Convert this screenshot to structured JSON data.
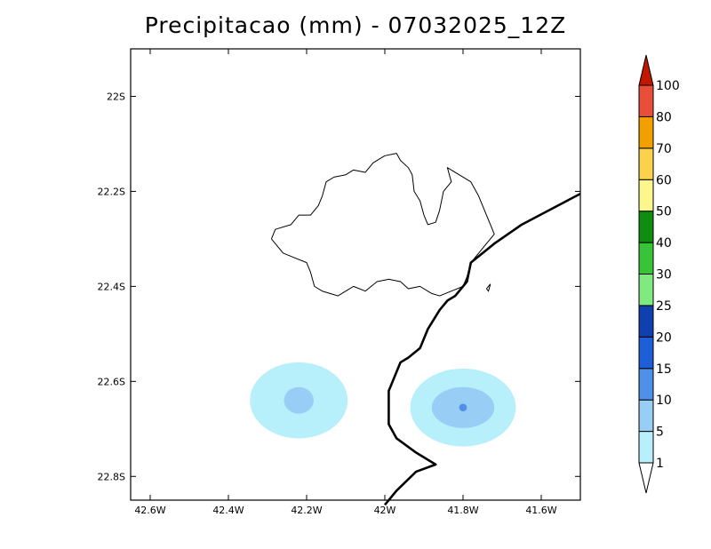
{
  "title": "Precipitacao (mm) - 07032025_12Z",
  "map": {
    "lon_range": [
      -42.65,
      -41.5
    ],
    "lat_range": [
      -22.85,
      -21.9
    ],
    "x_ticks": [
      {
        "lon": -42.6,
        "label": "42.6W"
      },
      {
        "lon": -42.4,
        "label": "42.4W"
      },
      {
        "lon": -42.2,
        "label": "42.2W"
      },
      {
        "lon": -42.0,
        "label": "42W"
      },
      {
        "lon": -41.8,
        "label": "41.8W"
      },
      {
        "lon": -41.6,
        "label": "41.6W"
      }
    ],
    "y_ticks": [
      {
        "lat": -22.0,
        "label": "22S"
      },
      {
        "lat": -22.2,
        "label": "22.2S"
      },
      {
        "lat": -22.4,
        "label": "22.4S"
      },
      {
        "lat": -22.6,
        "label": "22.6S"
      },
      {
        "lat": -22.8,
        "label": "22.8S"
      }
    ],
    "precip_cells": [
      {
        "lon": -42.22,
        "lat": -22.64,
        "levels": [
          {
            "value": 1,
            "rlon": 0.125,
            "rlat": 0.08,
            "color": "#b7f0fa"
          },
          {
            "value": 5,
            "rlon": 0.038,
            "rlat": 0.028,
            "color": "#98cdf6"
          }
        ]
      },
      {
        "lon": -41.8,
        "lat": -22.655,
        "levels": [
          {
            "value": 1,
            "rlon": 0.135,
            "rlat": 0.082,
            "color": "#b7f0fa"
          },
          {
            "value": 5,
            "rlon": 0.08,
            "rlat": 0.043,
            "color": "#98cdf6"
          },
          {
            "value": 10,
            "rlon": 0.01,
            "rlat": 0.008,
            "color": "#4f90e8"
          }
        ]
      }
    ],
    "coastline": [
      [
        -41.5,
        -22.205
      ],
      [
        -41.65,
        -22.27
      ],
      [
        -41.72,
        -22.31
      ],
      [
        -41.78,
        -22.35
      ],
      [
        -41.79,
        -22.39
      ],
      [
        -41.82,
        -22.42
      ],
      [
        -41.84,
        -22.43
      ],
      [
        -41.86,
        -22.45
      ],
      [
        -41.89,
        -22.49
      ],
      [
        -41.91,
        -22.53
      ],
      [
        -41.94,
        -22.55
      ],
      [
        -41.96,
        -22.56
      ],
      [
        -41.98,
        -22.6
      ],
      [
        -41.99,
        -22.62
      ],
      [
        -41.99,
        -22.69
      ],
      [
        -41.97,
        -22.72
      ],
      [
        -41.92,
        -22.75
      ],
      [
        -41.87,
        -22.775
      ],
      [
        -41.92,
        -22.79
      ],
      [
        -41.97,
        -22.83
      ],
      [
        -42.0,
        -22.86
      ]
    ],
    "municipality": [
      [
        -42.29,
        -22.3
      ],
      [
        -42.28,
        -22.28
      ],
      [
        -42.24,
        -22.27
      ],
      [
        -42.22,
        -22.25
      ],
      [
        -42.19,
        -22.25
      ],
      [
        -42.17,
        -22.23
      ],
      [
        -42.16,
        -22.21
      ],
      [
        -42.15,
        -22.18
      ],
      [
        -42.13,
        -22.17
      ],
      [
        -42.1,
        -22.165
      ],
      [
        -42.08,
        -22.155
      ],
      [
        -42.05,
        -22.16
      ],
      [
        -42.03,
        -22.14
      ],
      [
        -42.01,
        -22.13
      ],
      [
        -42.0,
        -22.125
      ],
      [
        -41.97,
        -22.12
      ],
      [
        -41.96,
        -22.135
      ],
      [
        -41.94,
        -22.15
      ],
      [
        -41.93,
        -22.165
      ],
      [
        -41.925,
        -22.2
      ],
      [
        -41.91,
        -22.22
      ],
      [
        -41.9,
        -22.25
      ],
      [
        -41.89,
        -22.27
      ],
      [
        -41.87,
        -22.265
      ],
      [
        -41.86,
        -22.24
      ],
      [
        -41.85,
        -22.2
      ],
      [
        -41.83,
        -22.18
      ],
      [
        -41.84,
        -22.15
      ],
      [
        -41.81,
        -22.165
      ],
      [
        -41.78,
        -22.18
      ],
      [
        -41.76,
        -22.21
      ],
      [
        -41.74,
        -22.25
      ],
      [
        -41.72,
        -22.29
      ],
      [
        -41.74,
        -22.31
      ],
      [
        -41.76,
        -22.33
      ],
      [
        -41.78,
        -22.35
      ],
      [
        -41.79,
        -22.38
      ],
      [
        -41.8,
        -22.4
      ],
      [
        -41.83,
        -22.41
      ],
      [
        -41.86,
        -22.42
      ],
      [
        -41.88,
        -22.415
      ],
      [
        -41.91,
        -22.4
      ],
      [
        -41.94,
        -22.405
      ],
      [
        -41.96,
        -22.39
      ],
      [
        -41.99,
        -22.385
      ],
      [
        -42.02,
        -22.39
      ],
      [
        -42.05,
        -22.41
      ],
      [
        -42.08,
        -22.4
      ],
      [
        -42.1,
        -22.41
      ],
      [
        -42.12,
        -22.42
      ],
      [
        -42.14,
        -22.415
      ],
      [
        -42.16,
        -22.41
      ],
      [
        -42.18,
        -22.4
      ],
      [
        -42.19,
        -22.37
      ],
      [
        -42.2,
        -22.35
      ],
      [
        -42.23,
        -22.34
      ],
      [
        -42.26,
        -22.33
      ],
      [
        -42.29,
        -22.3
      ]
    ],
    "islands": [
      [
        [
          -41.74,
          -22.405
        ],
        [
          -41.735,
          -22.4
        ],
        [
          -41.73,
          -22.395
        ],
        [
          -41.735,
          -22.41
        ],
        [
          -41.74,
          -22.405
        ]
      ]
    ]
  },
  "colorbar": {
    "levels": [
      {
        "label": "1",
        "color": "#ffffff"
      },
      {
        "label": "5",
        "color": "#b7f0fa"
      },
      {
        "label": "10",
        "color": "#98cdf6"
      },
      {
        "label": "15",
        "color": "#4f90e8"
      },
      {
        "label": "20",
        "color": "#1e5ed8"
      },
      {
        "label": "25",
        "color": "#103fb0"
      },
      {
        "label": "30",
        "color": "#80ea80"
      },
      {
        "label": "40",
        "color": "#38c438"
      },
      {
        "label": "50",
        "color": "#108c10"
      },
      {
        "label": "60",
        "color": "#fcf78c"
      },
      {
        "label": "70",
        "color": "#fad24c"
      },
      {
        "label": "80",
        "color": "#f2a000"
      },
      {
        "label": "100",
        "color": "#e84e3a"
      }
    ],
    "top_triangle_color": "#c01800",
    "bottom_triangle_color": "#ffffff"
  }
}
